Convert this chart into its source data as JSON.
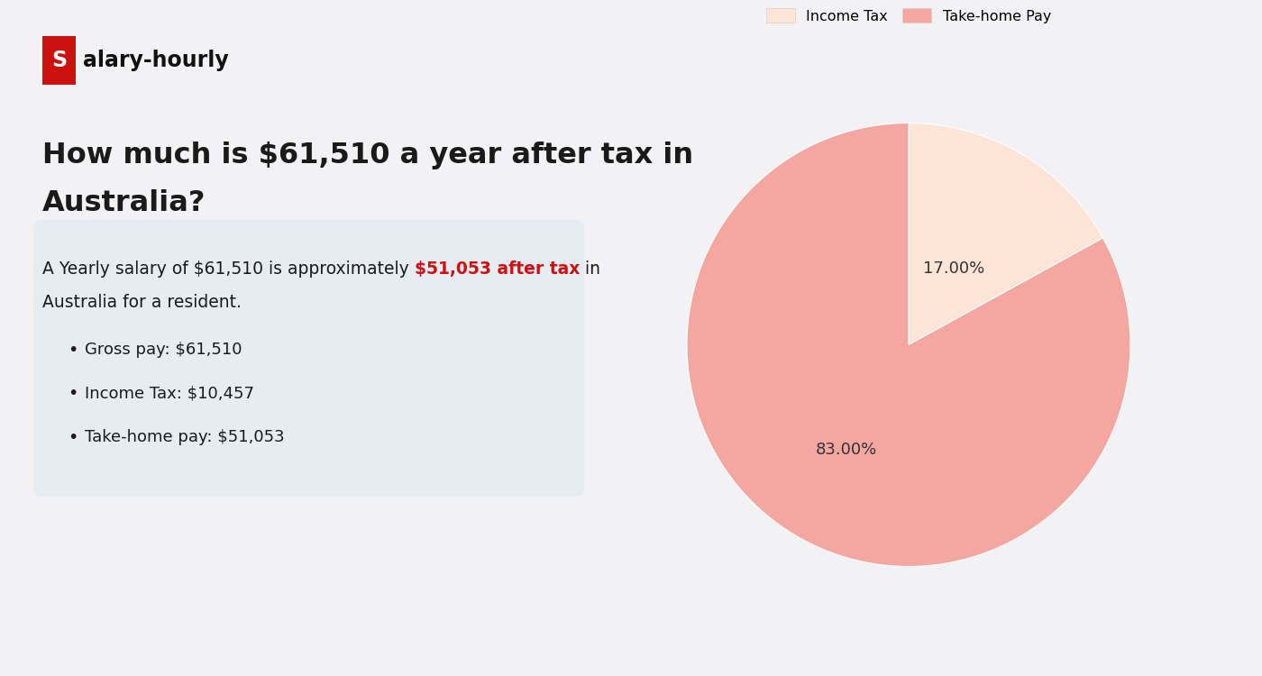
{
  "background_color": "#f2f2f5",
  "logo_s_bg": "#cc1111",
  "logo_s_text": "S",
  "title_line1": "How much is $61,510 a year after tax in",
  "title_line2": "Australia?",
  "title_fontsize": 23,
  "title_color": "#1a1a1a",
  "info_box_bg": "#e6ecf2",
  "info_text_before": "A Yearly salary of $61,510 is approximately ",
  "info_text_highlight": "$51,053 after tax",
  "info_text_after": " in",
  "info_text_line2": "Australia for a resident.",
  "info_highlight_color": "#cc1111",
  "info_fontsize": 13.5,
  "bullet_items": [
    "Gross pay: $61,510",
    "Income Tax: $10,457",
    "Take-home pay: $51,053"
  ],
  "bullet_fontsize": 13,
  "pie_values": [
    17.0,
    83.0
  ],
  "pie_colors": [
    "#fce4d6",
    "#f4a7a0"
  ],
  "pie_pct_labels": [
    "17.00%",
    "83.00%"
  ],
  "pie_legend_labels": [
    "Income Tax",
    "Take-home Pay"
  ],
  "pie_text_color": "#333333",
  "pie_fontsize": 13,
  "legend_fontsize": 11.5
}
